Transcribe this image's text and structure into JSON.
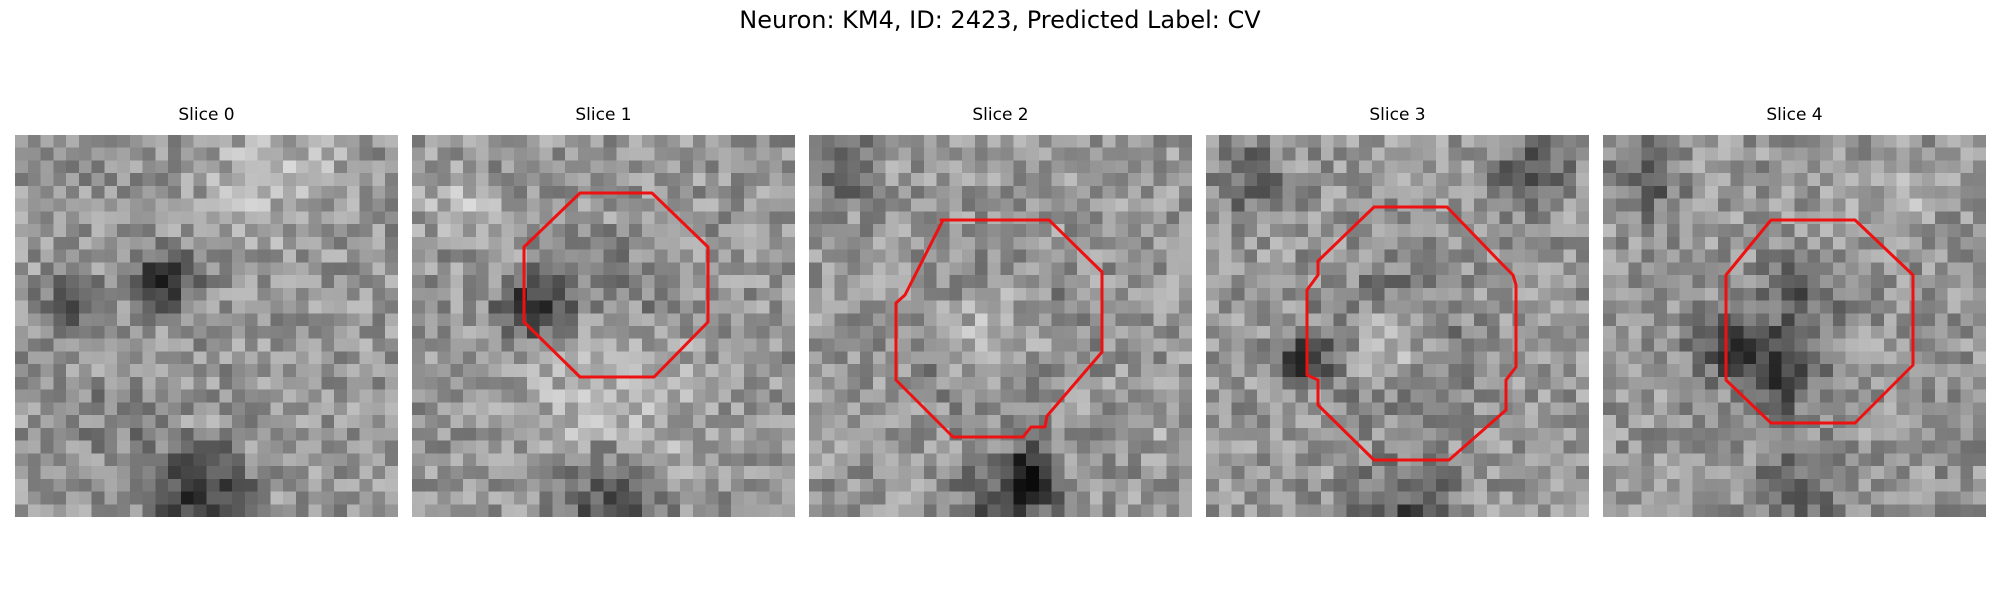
{
  "figure": {
    "title": "Neuron: KM4, ID: 2423, Predicted Label: CV"
  },
  "panels": [
    {
      "title": "Slice 0",
      "has_roi": false
    },
    {
      "title": "Slice 1",
      "has_roi": true
    },
    {
      "title": "Slice 2",
      "has_roi": true
    },
    {
      "title": "Slice 3",
      "has_roi": true
    },
    {
      "title": "Slice 4",
      "has_roi": true
    }
  ],
  "colors": {
    "roi_outline": "#ee1111",
    "background": "#ffffff"
  },
  "image_colormap": "gray"
}
